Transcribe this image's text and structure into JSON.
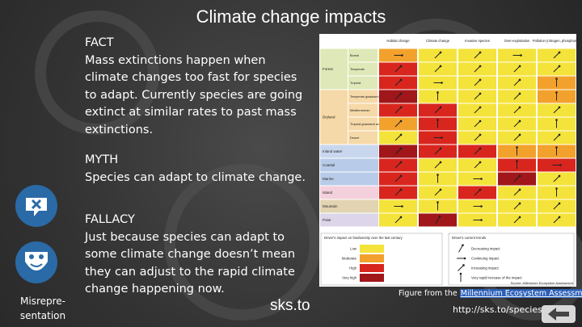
{
  "header": {
    "title": "Climate change impacts"
  },
  "body": [
    {
      "heading": "FACT",
      "text": "Mass extinctions happen when climate changes too fast for species to adapt. Currently species are going extinct at similar rates to past mass extinctions."
    },
    {
      "heading": "MYTH",
      "text": "Species can adapt to climate change."
    },
    {
      "heading": "FALLACY",
      "text": "Just because species can adapt to some climate change doesn’t mean they can adjust to the rapid climate change happening now."
    }
  ],
  "sidebar": {
    "label_lines": [
      "Misrepre-",
      "sentation"
    ]
  },
  "figure": {
    "column_headers": [
      "Habitat change",
      "Climate change",
      "Invasive species",
      "Over-exploitation",
      "Pollution (nitrogen, phosphorus)"
    ],
    "groups": [
      {
        "label": "Forest",
        "rows": [
          "Boreal",
          "Temperate",
          "Tropical"
        ]
      },
      {
        "label": "Dryland",
        "rows": [
          "Temperate grassland",
          "Mediterranean",
          "Tropical grassland and savanna",
          "Desert"
        ]
      },
      {
        "label": "Inland water"
      },
      {
        "label": "Coastal"
      },
      {
        "label": "Marine"
      },
      {
        "label": "Island"
      },
      {
        "label": "Mountain"
      },
      {
        "label": "Polar"
      }
    ],
    "impact_legend": {
      "title": "Driver's impact on biodiversity over the last century",
      "items": [
        "Low",
        "Moderate",
        "High",
        "Very high"
      ]
    },
    "trend_legend": {
      "title": "Driver's current trends",
      "items": [
        "Decreasing impact",
        "Continuing impact",
        "Increasing impact",
        "Very rapid increase of the impact"
      ]
    },
    "source": "Source: Millennium Ecosystem Assessment"
  },
  "caption": {
    "prefix": "Figure from the",
    "link": "Millennium Ecosystem Assessment"
  },
  "url": "http://sks.to/species",
  "logo": "sks.to"
}
